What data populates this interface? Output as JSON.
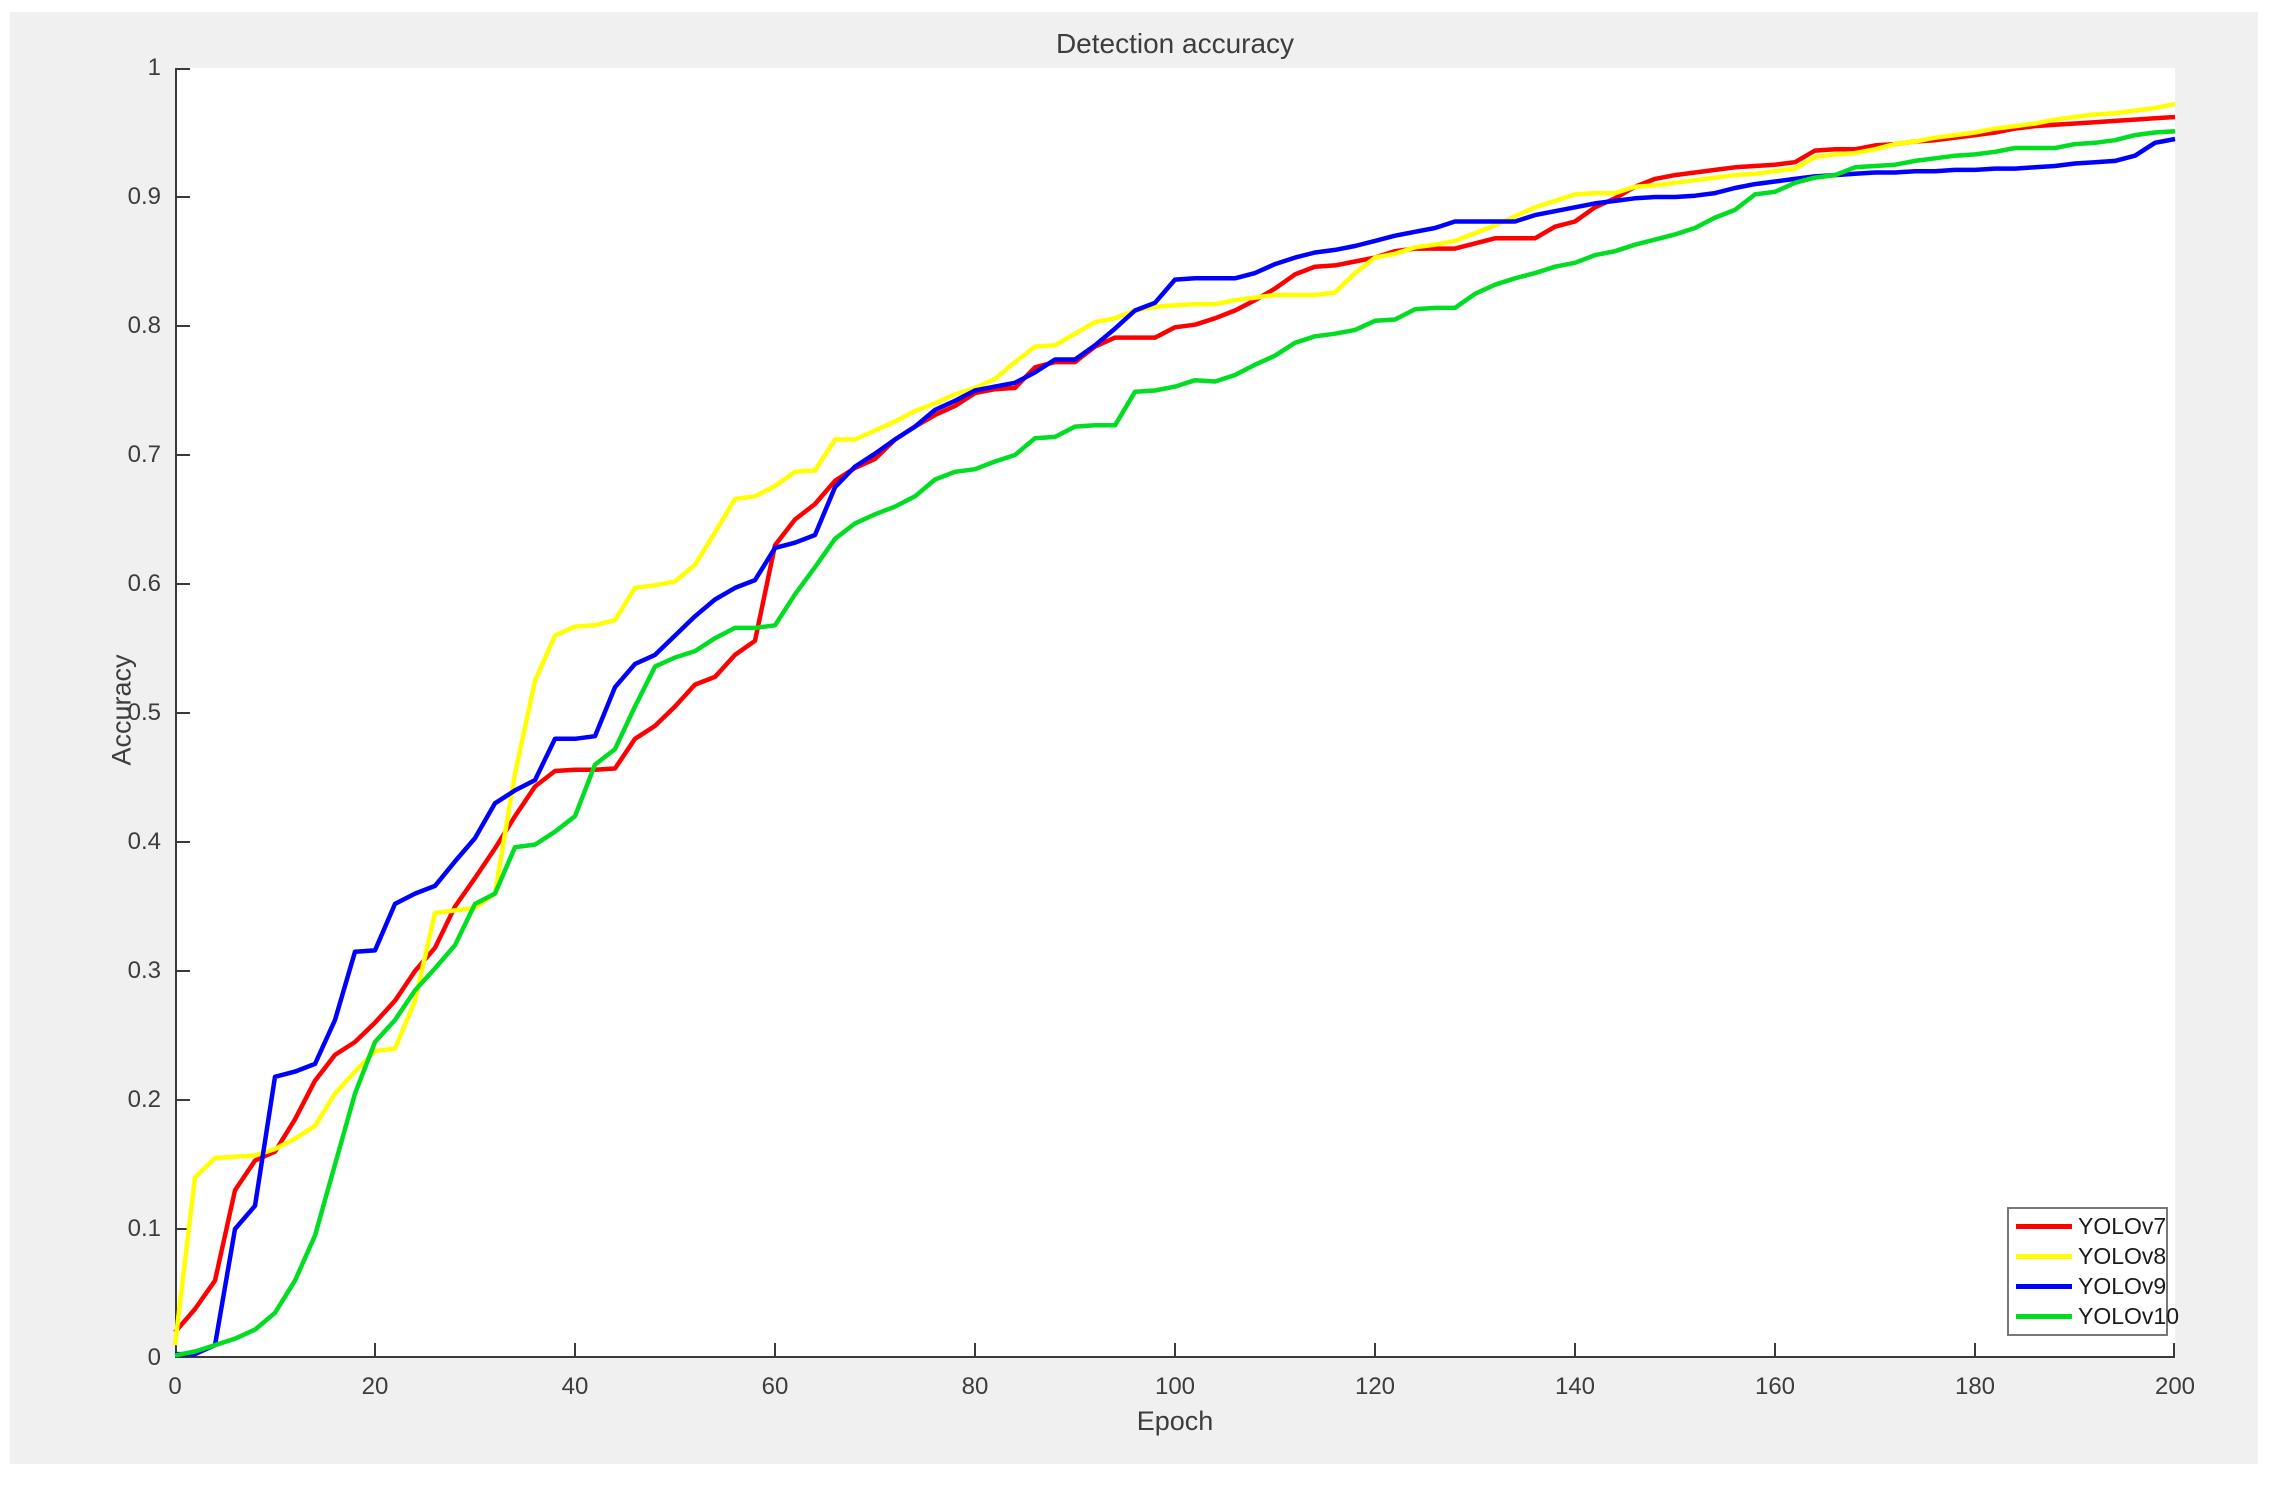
{
  "chart_data": {
    "type": "line",
    "title": "Detection accuracy",
    "xlabel": "Epoch",
    "ylabel": "Accuracy",
    "xlim": [
      0,
      200
    ],
    "ylim": [
      0,
      1
    ],
    "grid": false,
    "box": false,
    "tick_direction": "in",
    "legend_position": "bottom-right",
    "xticks": [
      0,
      20,
      40,
      60,
      80,
      100,
      120,
      140,
      160,
      180,
      200
    ],
    "xtick_labels": [
      "0",
      "20",
      "40",
      "60",
      "80",
      "100",
      "120",
      "140",
      "160",
      "180",
      "200"
    ],
    "yticks": [
      0,
      0.1,
      0.2,
      0.3,
      0.4,
      0.5,
      0.6,
      0.7,
      0.8,
      0.9,
      1
    ],
    "ytick_labels": [
      "0",
      "0.1",
      "0.2",
      "0.3",
      "0.4",
      "0.5",
      "0.6",
      "0.7",
      "0.8",
      "0.9",
      "1"
    ],
    "style": {
      "figure_bg": "#f0f0f0",
      "plot_bg": "#ffffff",
      "axis_color": "#3a3a3a",
      "text_color": "#3d3d3d",
      "line_width": 4.5
    },
    "x_step": 2,
    "series": [
      {
        "name": "YOLOv7",
        "color": "#ff0000",
        "values": [
          0.02,
          0.038,
          0.06,
          0.13,
          0.153,
          0.16,
          0.185,
          0.215,
          0.235,
          0.245,
          0.26,
          0.277,
          0.3,
          0.318,
          0.35,
          0.372,
          0.395,
          0.42,
          0.443,
          0.455,
          0.456,
          0.456,
          0.457,
          0.48,
          0.49,
          0.505,
          0.522,
          0.528,
          0.545,
          0.556,
          0.63,
          0.65,
          0.662,
          0.68,
          0.69,
          0.697,
          0.712,
          0.722,
          0.731,
          0.738,
          0.748,
          0.751,
          0.752,
          0.768,
          0.772,
          0.772,
          0.784,
          0.791,
          0.791,
          0.791,
          0.799,
          0.801,
          0.806,
          0.812,
          0.82,
          0.829,
          0.84,
          0.846,
          0.847,
          0.85,
          0.853,
          0.858,
          0.86,
          0.86,
          0.86,
          0.864,
          0.868,
          0.868,
          0.868,
          0.877,
          0.881,
          0.892,
          0.899,
          0.908,
          0.914,
          0.917,
          0.919,
          0.921,
          0.923,
          0.924,
          0.925,
          0.927,
          0.936,
          0.937,
          0.937,
          0.94,
          0.941,
          0.943,
          0.944,
          0.946,
          0.948,
          0.95,
          0.953,
          0.955,
          0.956,
          0.957,
          0.958,
          0.959,
          0.96,
          0.961,
          0.962
        ]
      },
      {
        "name": "YOLOv8",
        "color": "#ffff00",
        "values": [
          0.01,
          0.14,
          0.155,
          0.156,
          0.157,
          0.162,
          0.17,
          0.18,
          0.205,
          0.222,
          0.238,
          0.24,
          0.277,
          0.345,
          0.347,
          0.349,
          0.36,
          0.453,
          0.525,
          0.56,
          0.567,
          0.568,
          0.572,
          0.597,
          0.599,
          0.602,
          0.615,
          0.64,
          0.666,
          0.668,
          0.676,
          0.687,
          0.688,
          0.712,
          0.712,
          0.719,
          0.726,
          0.734,
          0.74,
          0.747,
          0.752,
          0.759,
          0.772,
          0.784,
          0.785,
          0.794,
          0.803,
          0.806,
          0.812,
          0.815,
          0.816,
          0.817,
          0.817,
          0.82,
          0.822,
          0.824,
          0.824,
          0.824,
          0.826,
          0.841,
          0.853,
          0.856,
          0.861,
          0.863,
          0.866,
          0.872,
          0.878,
          0.885,
          0.892,
          0.897,
          0.902,
          0.903,
          0.903,
          0.908,
          0.909,
          0.911,
          0.913,
          0.915,
          0.917,
          0.918,
          0.92,
          0.922,
          0.931,
          0.933,
          0.934,
          0.937,
          0.941,
          0.943,
          0.946,
          0.948,
          0.95,
          0.953,
          0.955,
          0.957,
          0.96,
          0.962,
          0.964,
          0.965,
          0.967,
          0.969,
          0.972
        ]
      },
      {
        "name": "YOLOv9",
        "color": "#0000ff",
        "values": [
          0.003,
          0.003,
          0.01,
          0.1,
          0.118,
          0.218,
          0.222,
          0.228,
          0.262,
          0.315,
          0.316,
          0.352,
          0.36,
          0.366,
          0.385,
          0.403,
          0.43,
          0.44,
          0.448,
          0.48,
          0.48,
          0.482,
          0.52,
          0.538,
          0.545,
          0.56,
          0.575,
          0.588,
          0.597,
          0.603,
          0.628,
          0.632,
          0.638,
          0.675,
          0.691,
          0.701,
          0.712,
          0.722,
          0.735,
          0.742,
          0.75,
          0.753,
          0.756,
          0.764,
          0.774,
          0.774,
          0.785,
          0.798,
          0.812,
          0.818,
          0.836,
          0.837,
          0.837,
          0.837,
          0.841,
          0.848,
          0.853,
          0.857,
          0.859,
          0.862,
          0.866,
          0.87,
          0.873,
          0.876,
          0.881,
          0.881,
          0.881,
          0.881,
          0.886,
          0.889,
          0.892,
          0.895,
          0.897,
          0.899,
          0.9,
          0.9,
          0.901,
          0.903,
          0.907,
          0.91,
          0.912,
          0.914,
          0.916,
          0.917,
          0.918,
          0.919,
          0.919,
          0.92,
          0.92,
          0.921,
          0.921,
          0.922,
          0.922,
          0.923,
          0.924,
          0.926,
          0.927,
          0.928,
          0.932,
          0.942,
          0.945
        ]
      },
      {
        "name": "YOLOv10",
        "color": "#00dd22",
        "values": [
          0.002,
          0.005,
          0.01,
          0.015,
          0.022,
          0.035,
          0.06,
          0.095,
          0.15,
          0.205,
          0.245,
          0.262,
          0.285,
          0.302,
          0.32,
          0.352,
          0.36,
          0.396,
          0.398,
          0.408,
          0.42,
          0.46,
          0.472,
          0.505,
          0.536,
          0.543,
          0.548,
          0.558,
          0.566,
          0.566,
          0.568,
          0.592,
          0.613,
          0.635,
          0.647,
          0.654,
          0.66,
          0.668,
          0.681,
          0.687,
          0.689,
          0.695,
          0.7,
          0.713,
          0.714,
          0.722,
          0.723,
          0.723,
          0.749,
          0.75,
          0.753,
          0.758,
          0.757,
          0.762,
          0.77,
          0.777,
          0.787,
          0.792,
          0.794,
          0.797,
          0.804,
          0.805,
          0.813,
          0.814,
          0.814,
          0.825,
          0.832,
          0.837,
          0.841,
          0.846,
          0.849,
          0.855,
          0.858,
          0.863,
          0.867,
          0.871,
          0.876,
          0.884,
          0.89,
          0.902,
          0.904,
          0.911,
          0.915,
          0.917,
          0.923,
          0.924,
          0.925,
          0.928,
          0.93,
          0.932,
          0.933,
          0.935,
          0.938,
          0.938,
          0.938,
          0.941,
          0.942,
          0.944,
          0.948,
          0.95,
          0.951
        ]
      }
    ],
    "legend": {
      "items": [
        "YOLOv7",
        "YOLOv8",
        "YOLOv9",
        "YOLOv10"
      ]
    }
  }
}
